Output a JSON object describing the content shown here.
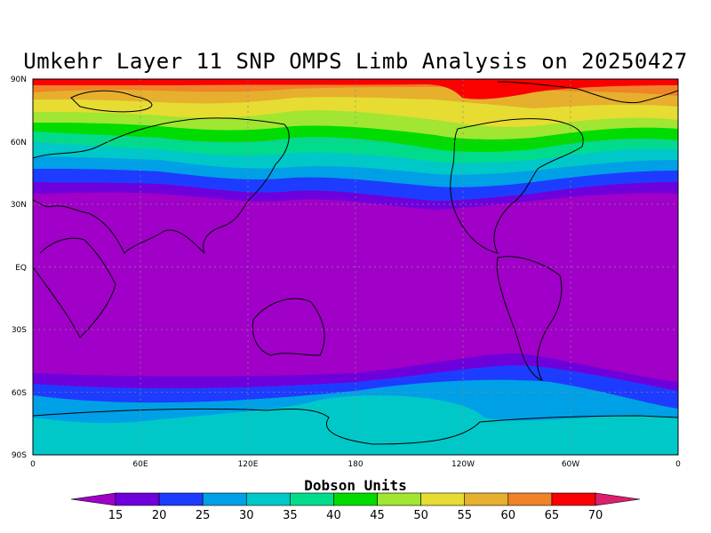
{
  "title": "Umkehr Layer 11 SNP OMPS Limb Analysis on 20250427",
  "lat_ticks": [
    "90N",
    "60N",
    "30N",
    "EQ",
    "30S",
    "60S",
    "90S"
  ],
  "lon_ticks": [
    "0",
    "60E",
    "120E",
    "180",
    "120W",
    "60W",
    "0"
  ],
  "colorbar": {
    "title": "Dobson Units",
    "levels": [
      "15",
      "20",
      "25",
      "30",
      "35",
      "40",
      "45",
      "50",
      "55",
      "60",
      "65",
      "70"
    ],
    "colors": [
      "#a000c8",
      "#6e00dc",
      "#1e3cff",
      "#00a0e6",
      "#00c8c8",
      "#00dc8c",
      "#00dc00",
      "#a0e632",
      "#e6dc32",
      "#e6af2d",
      "#f08228",
      "#fa0000",
      "#dc1e6e"
    ]
  },
  "chart_data": {
    "type": "heatmap",
    "title": "Umkehr Layer 11 SNP OMPS Limb Analysis on 20250427",
    "units": "Dobson Units",
    "x_range": [
      "0",
      "0"
    ],
    "y_range": [
      "90S",
      "90N"
    ],
    "description_bands": [
      {
        "lat_band": "80N-90N",
        "value_range": [
          65,
          70
        ]
      },
      {
        "lat_band": "65N-80N",
        "value_range": [
          55,
          65
        ]
      },
      {
        "lat_band": "55N-65N",
        "value_range": [
          45,
          55
        ]
      },
      {
        "lat_band": "40N-55N",
        "value_range": [
          25,
          45
        ]
      },
      {
        "lat_band": "35S-35N",
        "value_range": [
          15,
          20
        ]
      },
      {
        "lat_band": "45S-55S",
        "value_range": [
          20,
          30
        ]
      },
      {
        "lat_band": "60S-90S",
        "value_range": [
          30,
          35
        ]
      }
    ]
  }
}
